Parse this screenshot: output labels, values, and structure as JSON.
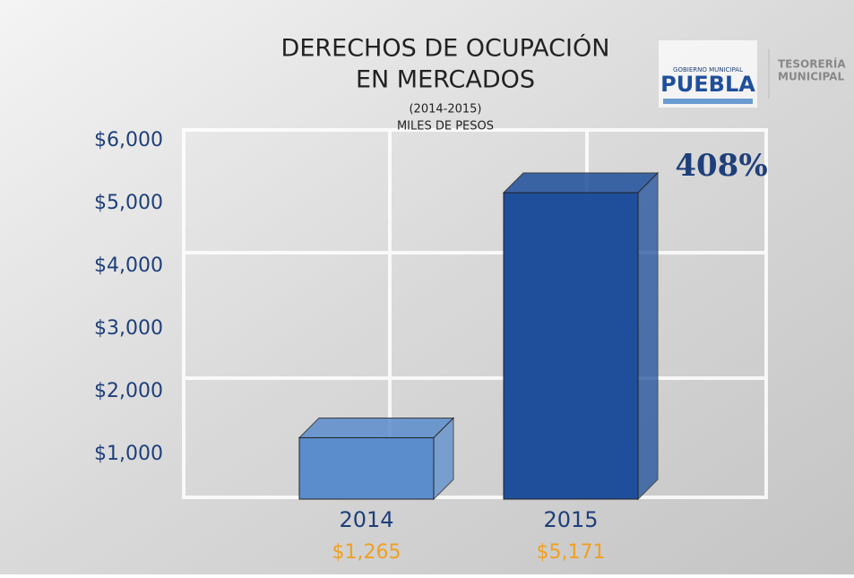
{
  "chart_data": {
    "type": "bar3d",
    "title": "DERECHOS DE OCUPACIÓN",
    "title_line2": "EN MERCADOS",
    "subtitle": "(2014-2015)",
    "unit_label": "MILES DE PESOS",
    "categories": [
      "2014",
      "2015"
    ],
    "values": [
      1265,
      5171
    ],
    "value_labels": [
      "$1,265",
      "$5,171"
    ],
    "colors": [
      "#5b8dcc",
      "#1f4f9b"
    ],
    "ylim": [
      0,
      6000
    ],
    "yticks": [
      {
        "value": 1000,
        "label": "$1,000"
      },
      {
        "value": 2000,
        "label": "$2,000"
      },
      {
        "value": 3000,
        "label": "$3,000"
      },
      {
        "value": 4000,
        "label": "$4,000"
      },
      {
        "value": 5000,
        "label": "$5,000"
      },
      {
        "value": 6000,
        "label": "$6,000"
      }
    ],
    "annotation": "408%"
  },
  "logo": {
    "top": "GOBIERNO MUNICIPAL",
    "name": "PUEBLA",
    "dept_line1": "TESORERÍA",
    "dept_line2": "MUNICIPAL"
  }
}
